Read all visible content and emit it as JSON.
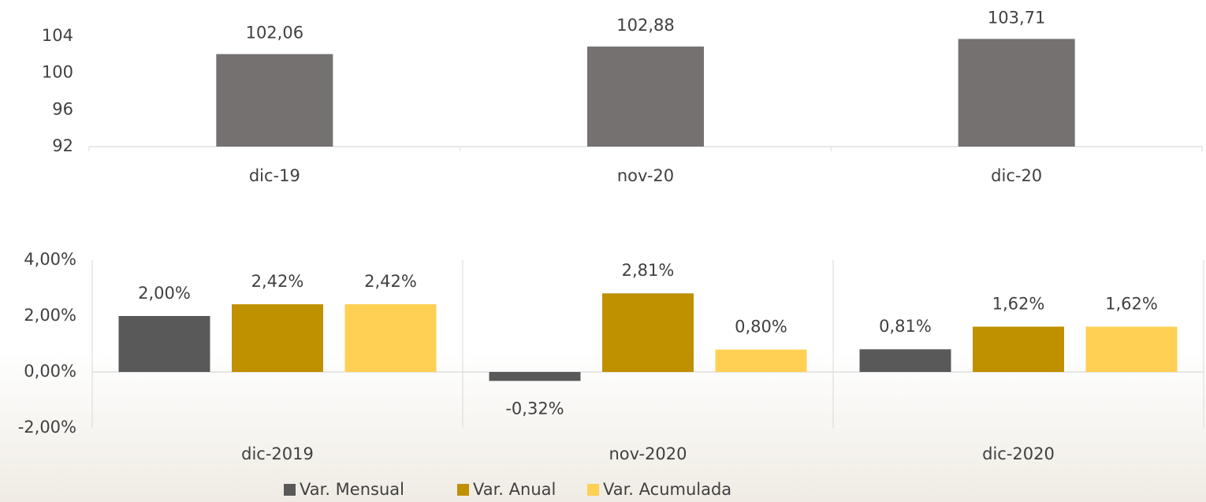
{
  "chart_data": [
    {
      "type": "bar",
      "categories": [
        "dic-19",
        "nov-20",
        "dic-20"
      ],
      "values": [
        102.06,
        102.88,
        103.71
      ],
      "value_labels": [
        "102,06",
        "102,88",
        "103,71"
      ],
      "color": "#767171",
      "ylim": [
        92,
        104
      ],
      "yticks": [
        92,
        96,
        100,
        104
      ],
      "grid": false
    },
    {
      "type": "grouped-bar",
      "categories": [
        "dic-2019",
        "nov-2020",
        "dic-2020"
      ],
      "series": [
        {
          "name": "Var. Mensual",
          "color": "#595959",
          "values": [
            2.0,
            -0.32,
            0.81
          ],
          "value_labels": [
            "2,00%",
            "-0,32%",
            "0,81%"
          ]
        },
        {
          "name": "Var. Anual",
          "color": "#bf9000",
          "values": [
            2.42,
            2.81,
            1.62
          ],
          "value_labels": [
            "2,42%",
            "2,81%",
            "1,62%"
          ]
        },
        {
          "name": "Var. Acumulada",
          "color": "#ffd054",
          "values": [
            2.42,
            0.8,
            1.62
          ],
          "value_labels": [
            "2,42%",
            "0,80%",
            "1,62%"
          ]
        }
      ],
      "ylim": [
        -2,
        4
      ],
      "yticks": [
        {
          "value": -2,
          "label": "-2,00%"
        },
        {
          "value": 0,
          "label": "0,00%"
        },
        {
          "value": 2,
          "label": "2,00%"
        },
        {
          "value": 4,
          "label": "4,00%"
        }
      ],
      "grid": false,
      "legend": "bottom"
    }
  ]
}
